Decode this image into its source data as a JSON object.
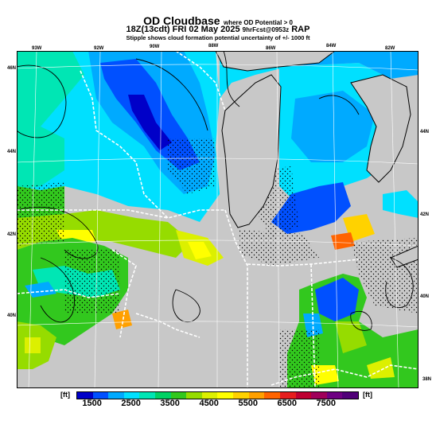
{
  "title": {
    "main": "OD Cloudbase",
    "qualifier": "where OD Potential > 0",
    "valid_time": "18Z(13cdt) FRI 02 May 2025",
    "forecast_info": "9hrFcst@0953z",
    "model": "RAP",
    "note": "Stipple shows cloud formation potential uncertainty of +/- 1000 ft"
  },
  "map": {
    "region": "Upper Midwest / Great Lakes",
    "background_color": "#c8c8c8",
    "lake_color": "#c8c8c8",
    "state_border_color": "#ffffff",
    "grid_color": "#ffffff",
    "contour_color": "#000000"
  },
  "lat_labels": {
    "left": [
      "46N",
      "44N",
      "42N",
      "40N"
    ],
    "right": [
      "44N",
      "42N",
      "40N",
      "38N"
    ]
  },
  "lon_labels": [
    "93W",
    "92W",
    "90W",
    "88W",
    "86W",
    "84W",
    "82W"
  ],
  "colorbar": {
    "unit_label": "[ft]",
    "tick_labels": [
      "1500",
      "2500",
      "3500",
      "4500",
      "5500",
      "6500",
      "7500"
    ],
    "colors": [
      "#0000c8",
      "#0050ff",
      "#00aaff",
      "#00e0ff",
      "#00e6b4",
      "#00d264",
      "#32c81e",
      "#96dc00",
      "#dcf000",
      "#ffff00",
      "#ffd200",
      "#ffa000",
      "#ff6400",
      "#e61e1e",
      "#be0032",
      "#a0005a",
      "#6e0082",
      "#500078"
    ]
  }
}
